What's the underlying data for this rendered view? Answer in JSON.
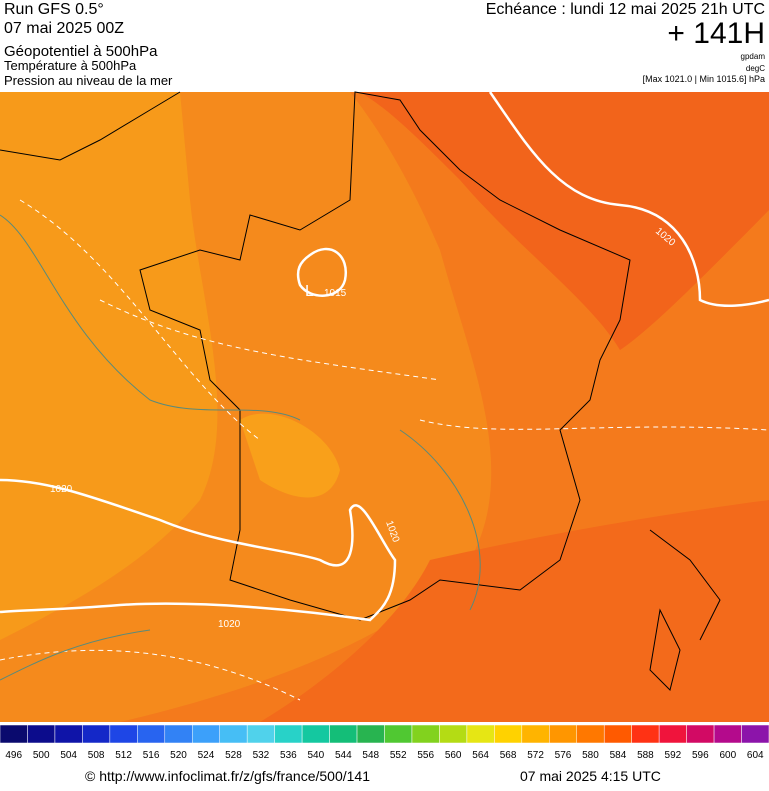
{
  "header": {
    "run": "Run GFS 0.5°",
    "date": "07 mai 2025 00Z",
    "field1": "Géopotentiel à 500hPa",
    "field2": "Température à 500hPa",
    "field3": "Pression au niveau de la mer",
    "echeance": "Echéance : lundi 12 mai 2025 21h UTC",
    "lead": "+ 141H",
    "unit1": "gpdam",
    "unit2": "degC",
    "range": "[Max 1021.0 | Min 1015.6] hPa"
  },
  "map": {
    "isobar_labels": [
      "1020",
      "1015",
      "1020",
      "1020",
      "1020"
    ],
    "low": "L"
  },
  "colorbar": {
    "labels": [
      496,
      500,
      504,
      508,
      512,
      516,
      520,
      524,
      528,
      532,
      536,
      540,
      544,
      548,
      552,
      556,
      560,
      564,
      568,
      572,
      576,
      580,
      584,
      588,
      592,
      596,
      600,
      604
    ]
  },
  "footer": {
    "url": "© http://www.infoclimat.fr/z/gfs/france/500/141",
    "time": "07 mai 2025  4:15 UTC"
  }
}
